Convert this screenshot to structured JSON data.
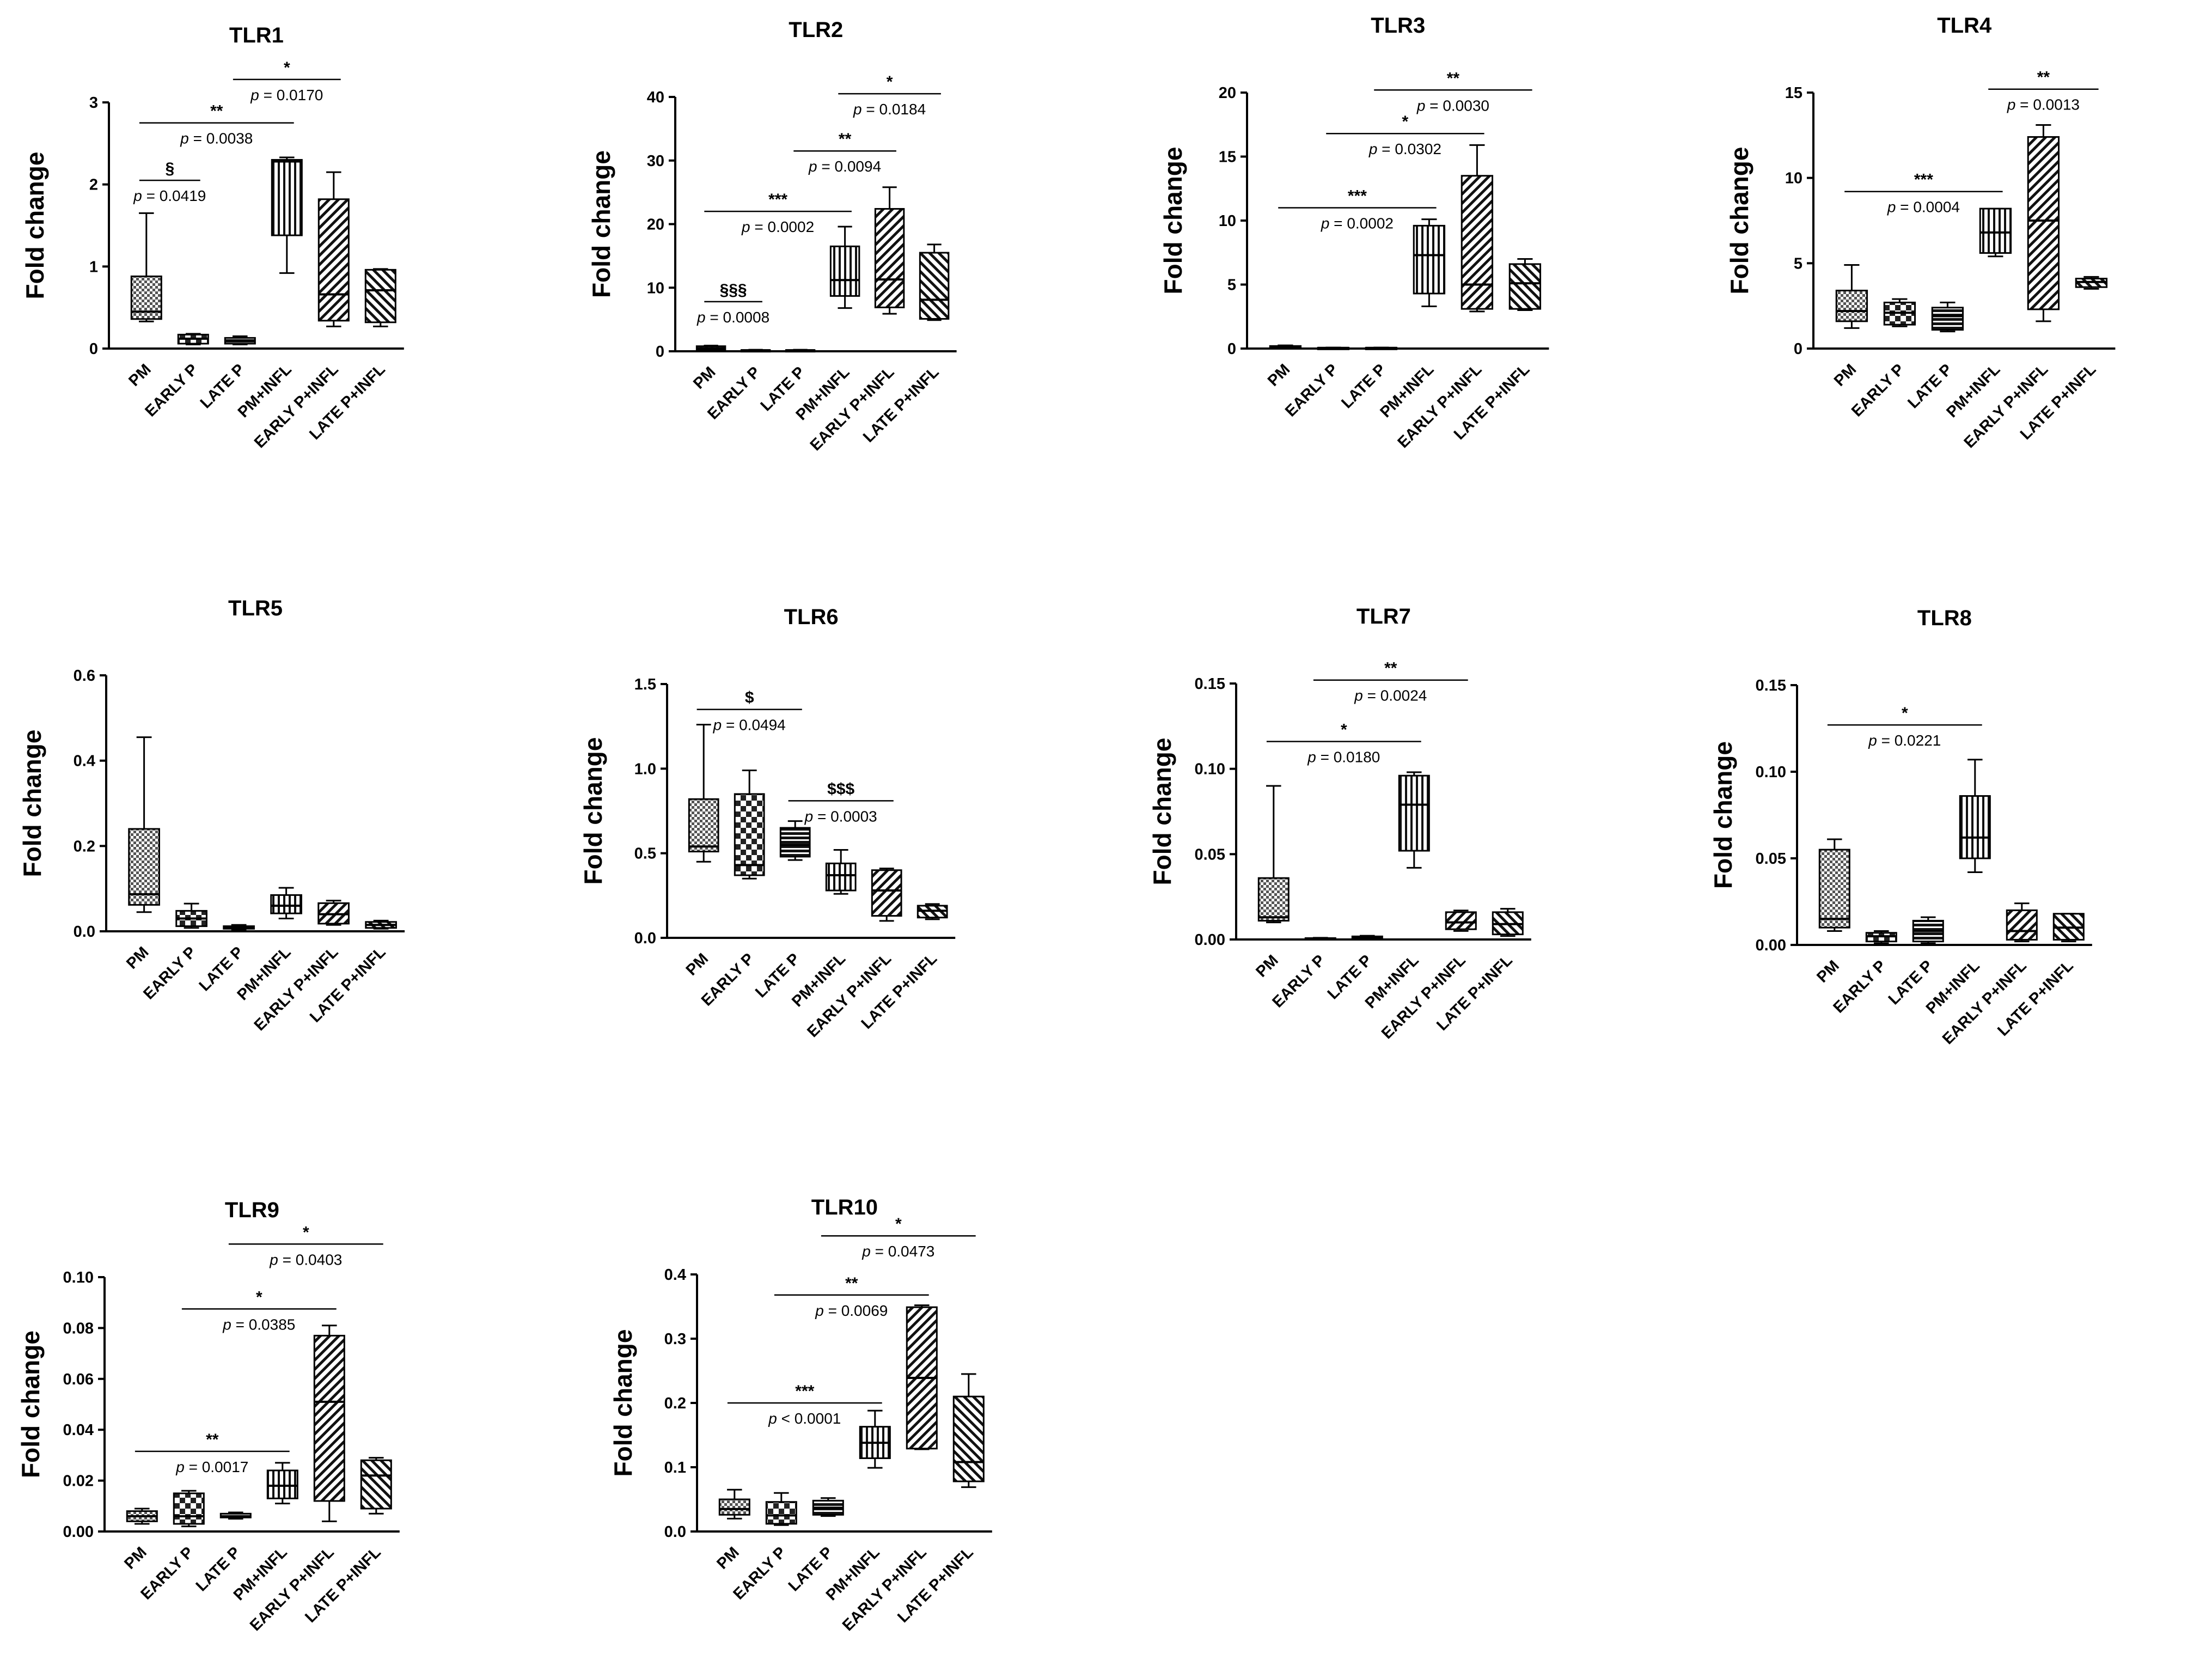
{
  "figure": {
    "ylabel": "Fold change",
    "pval_prefix": "p",
    "colors": {
      "ink": "#000000",
      "fill_light": "#c8c8c8",
      "fill_dark": "#2a2a2a",
      "background": "#ffffff"
    }
  },
  "chart_data": [
    {
      "type": "box",
      "title": "TLR1",
      "ylabel": "Fold change",
      "categories": [
        "PM",
        "EARLY P",
        "LATE P",
        "PM+INFL",
        "EARLY P+INFL",
        "LATE P+INFL"
      ],
      "yticks": [
        "0",
        "1",
        "2",
        "3"
      ],
      "ylim": [
        0,
        3
      ],
      "boxes": [
        {
          "min": 0.33,
          "q1": 0.36,
          "median": 0.45,
          "q3": 0.88,
          "max": 1.65
        },
        {
          "min": 0.05,
          "q1": 0.06,
          "median": 0.12,
          "q3": 0.17,
          "max": 0.18
        },
        {
          "min": 0.05,
          "q1": 0.06,
          "median": 0.1,
          "q3": 0.13,
          "max": 0.15
        },
        {
          "min": 0.92,
          "q1": 1.38,
          "median": 2.28,
          "q3": 2.3,
          "max": 2.33
        },
        {
          "min": 0.27,
          "q1": 0.34,
          "median": 0.66,
          "q3": 1.82,
          "max": 2.15
        },
        {
          "min": 0.27,
          "q1": 0.32,
          "median": 0.71,
          "q3": 0.96,
          "max": 0.97
        }
      ],
      "comparisons": [
        {
          "from": 0,
          "to": 1,
          "symbol": "§",
          "p": "0.0419",
          "y": 2.05
        },
        {
          "from": 0,
          "to": 3,
          "symbol": "**",
          "p": "0.0038",
          "y": 2.75
        },
        {
          "from": 2,
          "to": 4,
          "symbol": "*",
          "p": "0.0170",
          "y": 3.28
        }
      ]
    },
    {
      "type": "box",
      "title": "TLR2",
      "ylabel": "Fold change",
      "categories": [
        "PM",
        "EARLY P",
        "LATE P",
        "PM+INFL",
        "EARLY P+INFL",
        "LATE P+INFL"
      ],
      "yticks": [
        "0",
        "10",
        "20",
        "30",
        "40"
      ],
      "ylim": [
        0,
        40
      ],
      "boxes": [
        {
          "min": 0.2,
          "q1": 0.3,
          "median": 0.5,
          "q3": 0.8,
          "max": 0.9
        },
        {
          "min": 0.05,
          "q1": 0.1,
          "median": 0.15,
          "q3": 0.2,
          "max": 0.25
        },
        {
          "min": 0.05,
          "q1": 0.1,
          "median": 0.15,
          "q3": 0.2,
          "max": 0.25
        },
        {
          "min": 6.8,
          "q1": 8.7,
          "median": 11.2,
          "q3": 16.5,
          "max": 19.6
        },
        {
          "min": 5.9,
          "q1": 6.9,
          "median": 11.3,
          "q3": 22.4,
          "max": 25.8
        },
        {
          "min": 4.9,
          "q1": 5.1,
          "median": 8.1,
          "q3": 15.5,
          "max": 16.8
        }
      ],
      "comparisons": [
        {
          "from": 0,
          "to": 1,
          "symbol": "§§§",
          "p": "0.0008",
          "y": 7.8
        },
        {
          "from": 0,
          "to": 3,
          "symbol": "***",
          "p": "0.0002",
          "y": 22
        },
        {
          "from": 2,
          "to": 4,
          "symbol": "**",
          "p": "0.0094",
          "y": 31.5
        },
        {
          "from": 3,
          "to": 5,
          "symbol": "*",
          "p": "0.0184",
          "y": 40.5
        }
      ]
    },
    {
      "type": "box",
      "title": "TLR3",
      "ylabel": "Fold change",
      "categories": [
        "PM",
        "EARLY P",
        "LATE P",
        "PM+INFL",
        "EARLY P+INFL",
        "LATE P+INFL"
      ],
      "yticks": [
        "0",
        "5",
        "10",
        "15",
        "20"
      ],
      "ylim": [
        0,
        20
      ],
      "boxes": [
        {
          "min": 0.05,
          "q1": 0.1,
          "median": 0.15,
          "q3": 0.2,
          "max": 0.25
        },
        {
          "min": 0.02,
          "q1": 0.03,
          "median": 0.05,
          "q3": 0.07,
          "max": 0.08
        },
        {
          "min": 0.02,
          "q1": 0.03,
          "median": 0.05,
          "q3": 0.07,
          "max": 0.08
        },
        {
          "min": 3.3,
          "q1": 4.3,
          "median": 7.3,
          "q3": 9.6,
          "max": 10.1
        },
        {
          "min": 2.9,
          "q1": 3.1,
          "median": 5.0,
          "q3": 13.5,
          "max": 15.9
        },
        {
          "min": 3.0,
          "q1": 3.1,
          "median": 5.1,
          "q3": 6.6,
          "max": 7.0
        }
      ],
      "comparisons": [
        {
          "from": 0,
          "to": 3,
          "symbol": "***",
          "p": "0.0002",
          "y": 11
        },
        {
          "from": 1,
          "to": 4,
          "symbol": "*",
          "p": "0.0302",
          "y": 16.8
        },
        {
          "from": 2,
          "to": 5,
          "symbol": "**",
          "p": "0.0030",
          "y": 20.2
        }
      ]
    },
    {
      "type": "box",
      "title": "TLR4",
      "ylabel": "Fold change",
      "categories": [
        "PM",
        "EARLY P",
        "LATE P",
        "PM+INFL",
        "EARLY P+INFL",
        "LATE P+INFL"
      ],
      "yticks": [
        "0",
        "5",
        "10",
        "15"
      ],
      "ylim": [
        0,
        15
      ],
      "boxes": [
        {
          "min": 1.2,
          "q1": 1.6,
          "median": 2.2,
          "q3": 3.4,
          "max": 4.9
        },
        {
          "min": 1.3,
          "q1": 1.4,
          "median": 2.1,
          "q3": 2.7,
          "max": 2.9
        },
        {
          "min": 1.0,
          "q1": 1.1,
          "median": 1.9,
          "q3": 2.4,
          "max": 2.7
        },
        {
          "min": 5.4,
          "q1": 5.6,
          "median": 6.8,
          "q3": 8.2,
          "max": 8.2
        },
        {
          "min": 1.6,
          "q1": 2.3,
          "median": 7.5,
          "q3": 12.4,
          "max": 13.1
        },
        {
          "min": 3.5,
          "q1": 3.6,
          "median": 3.9,
          "q3": 4.1,
          "max": 4.2
        }
      ],
      "comparisons": [
        {
          "from": 0,
          "to": 3,
          "symbol": "***",
          "p": "0.0004",
          "y": 9.2
        },
        {
          "from": 3,
          "to": 5,
          "symbol": "**",
          "p": "0.0013",
          "y": 15.2
        }
      ]
    },
    {
      "type": "box",
      "title": "TLR5",
      "ylabel": "Fold change",
      "categories": [
        "PM",
        "EARLY P",
        "LATE P",
        "PM+INFL",
        "EARLY P+INFL",
        "LATE P+INFL"
      ],
      "yticks": [
        "0.0",
        "0.2",
        "0.4",
        "0.6"
      ],
      "ylim": [
        0,
        0.6
      ],
      "boxes": [
        {
          "min": 0.045,
          "q1": 0.062,
          "median": 0.087,
          "q3": 0.24,
          "max": 0.455
        },
        {
          "min": 0.008,
          "q1": 0.012,
          "median": 0.03,
          "q3": 0.048,
          "max": 0.065
        },
        {
          "min": 0.004,
          "q1": 0.006,
          "median": 0.009,
          "q3": 0.012,
          "max": 0.015
        },
        {
          "min": 0.03,
          "q1": 0.042,
          "median": 0.06,
          "q3": 0.085,
          "max": 0.102
        },
        {
          "min": 0.015,
          "q1": 0.018,
          "median": 0.04,
          "q3": 0.066,
          "max": 0.072
        },
        {
          "min": 0.006,
          "q1": 0.008,
          "median": 0.015,
          "q3": 0.022,
          "max": 0.025
        }
      ],
      "comparisons": []
    },
    {
      "type": "box",
      "title": "TLR6",
      "ylabel": "Fold change",
      "categories": [
        "PM",
        "EARLY P",
        "LATE P",
        "PM+INFL",
        "EARLY P+INFL",
        "LATE P+INFL"
      ],
      "yticks": [
        "0.0",
        "0.5",
        "1.0",
        "1.5"
      ],
      "ylim": [
        0,
        1.5
      ],
      "boxes": [
        {
          "min": 0.45,
          "q1": 0.51,
          "median": 0.54,
          "q3": 0.82,
          "max": 1.26
        },
        {
          "min": 0.35,
          "q1": 0.37,
          "median": 0.43,
          "q3": 0.85,
          "max": 0.99
        },
        {
          "min": 0.46,
          "q1": 0.48,
          "median": 0.55,
          "q3": 0.65,
          "max": 0.69
        },
        {
          "min": 0.26,
          "q1": 0.28,
          "median": 0.37,
          "q3": 0.44,
          "max": 0.52
        },
        {
          "min": 0.1,
          "q1": 0.13,
          "median": 0.28,
          "q3": 0.4,
          "max": 0.41
        },
        {
          "min": 0.11,
          "q1": 0.12,
          "median": 0.16,
          "q3": 0.19,
          "max": 0.2
        }
      ],
      "comparisons": [
        {
          "from": 0,
          "to": 2,
          "symbol": "$",
          "p": "0.0494",
          "y": 1.35
        },
        {
          "from": 2,
          "to": 4,
          "symbol": "$$$",
          "p": "0.0003",
          "y": 0.81
        }
      ]
    },
    {
      "type": "box",
      "title": "TLR7",
      "ylabel": "Fold change",
      "categories": [
        "PM",
        "EARLY P",
        "LATE P",
        "PM+INFL",
        "EARLY P+INFL",
        "LATE P+INFL"
      ],
      "yticks": [
        "0.00",
        "0.05",
        "0.10",
        "0.15"
      ],
      "ylim": [
        0,
        0.15
      ],
      "boxes": [
        {
          "min": 0.01,
          "q1": 0.011,
          "median": 0.013,
          "q3": 0.036,
          "max": 0.09
        },
        {
          "min": 0.0003,
          "q1": 0.0004,
          "median": 0.0006,
          "q3": 0.0008,
          "max": 0.001
        },
        {
          "min": 0.0005,
          "q1": 0.0008,
          "median": 0.0012,
          "q3": 0.0018,
          "max": 0.0022
        },
        {
          "min": 0.042,
          "q1": 0.052,
          "median": 0.079,
          "q3": 0.096,
          "max": 0.098
        },
        {
          "min": 0.005,
          "q1": 0.006,
          "median": 0.01,
          "q3": 0.016,
          "max": 0.017
        },
        {
          "min": 0.002,
          "q1": 0.003,
          "median": 0.009,
          "q3": 0.016,
          "max": 0.018
        }
      ],
      "comparisons": [
        {
          "from": 0,
          "to": 3,
          "symbol": "*",
          "p": "0.0180",
          "y": 0.116
        },
        {
          "from": 1,
          "to": 4,
          "symbol": "**",
          "p": "0.0024",
          "y": 0.152
        }
      ]
    },
    {
      "type": "box",
      "title": "TLR8",
      "ylabel": "Fold change",
      "categories": [
        "PM",
        "EARLY P",
        "LATE P",
        "PM+INFL",
        "EARLY P+INFL",
        "LATE P+INFL"
      ],
      "yticks": [
        "0.00",
        "0.05",
        "0.10",
        "0.15"
      ],
      "ylim": [
        0,
        0.15
      ],
      "boxes": [
        {
          "min": 0.008,
          "q1": 0.01,
          "median": 0.015,
          "q3": 0.055,
          "max": 0.061
        },
        {
          "min": 0.001,
          "q1": 0.002,
          "median": 0.005,
          "q3": 0.007,
          "max": 0.008
        },
        {
          "min": 0.001,
          "q1": 0.002,
          "median": 0.008,
          "q3": 0.014,
          "max": 0.016
        },
        {
          "min": 0.042,
          "q1": 0.05,
          "median": 0.062,
          "q3": 0.086,
          "max": 0.107
        },
        {
          "min": 0.002,
          "q1": 0.003,
          "median": 0.008,
          "q3": 0.02,
          "max": 0.024
        },
        {
          "min": 0.002,
          "q1": 0.003,
          "median": 0.01,
          "q3": 0.018,
          "max": 0.018
        }
      ],
      "comparisons": [
        {
          "from": 0,
          "to": 3,
          "symbol": "*",
          "p": "0.0221",
          "y": 0.127
        }
      ]
    },
    {
      "type": "box",
      "title": "TLR9",
      "ylabel": "Fold change",
      "categories": [
        "PM",
        "EARLY P",
        "LATE P",
        "PM+INFL",
        "EARLY P+INFL",
        "LATE P+INFL"
      ],
      "yticks": [
        "0.00",
        "0.02",
        "0.04",
        "0.06",
        "0.08",
        "0.10"
      ],
      "ylim": [
        0,
        0.1
      ],
      "boxes": [
        {
          "min": 0.003,
          "q1": 0.004,
          "median": 0.006,
          "q3": 0.008,
          "max": 0.009
        },
        {
          "min": 0.002,
          "q1": 0.003,
          "median": 0.006,
          "q3": 0.015,
          "max": 0.016
        },
        {
          "min": 0.005,
          "q1": 0.0055,
          "median": 0.006,
          "q3": 0.007,
          "max": 0.0075
        },
        {
          "min": 0.011,
          "q1": 0.013,
          "median": 0.018,
          "q3": 0.024,
          "max": 0.027
        },
        {
          "min": 0.004,
          "q1": 0.012,
          "median": 0.051,
          "q3": 0.077,
          "max": 0.081
        },
        {
          "min": 0.007,
          "q1": 0.009,
          "median": 0.022,
          "q3": 0.028,
          "max": 0.029
        }
      ],
      "comparisons": [
        {
          "from": 0,
          "to": 3,
          "symbol": "**",
          "p": "0.0017",
          "y": 0.0315
        },
        {
          "from": 1,
          "to": 4,
          "symbol": "*",
          "p": "0.0385",
          "y": 0.0875
        },
        {
          "from": 2,
          "to": 5,
          "symbol": "*",
          "p": "0.0403",
          "y": 0.113
        }
      ]
    },
    {
      "type": "box",
      "title": "TLR10",
      "ylabel": "Fold change",
      "categories": [
        "PM",
        "EARLY P",
        "LATE P",
        "PM+INFL",
        "EARLY P+INFL",
        "LATE P+INFL"
      ],
      "yticks": [
        "0.0",
        "0.1",
        "0.2",
        "0.3",
        "0.4"
      ],
      "ylim": [
        0,
        0.4
      ],
      "boxes": [
        {
          "min": 0.02,
          "q1": 0.026,
          "median": 0.035,
          "q3": 0.05,
          "max": 0.065
        },
        {
          "min": 0.01,
          "q1": 0.012,
          "median": 0.025,
          "q3": 0.046,
          "max": 0.06
        },
        {
          "min": 0.024,
          "q1": 0.026,
          "median": 0.037,
          "q3": 0.048,
          "max": 0.052
        },
        {
          "min": 0.099,
          "q1": 0.114,
          "median": 0.138,
          "q3": 0.163,
          "max": 0.188
        },
        {
          "min": 0.128,
          "q1": 0.129,
          "median": 0.239,
          "q3": 0.349,
          "max": 0.352
        },
        {
          "min": 0.069,
          "q1": 0.078,
          "median": 0.108,
          "q3": 0.21,
          "max": 0.245
        }
      ],
      "comparisons": [
        {
          "from": 0,
          "to": 3,
          "symbol": "***",
          "p": "< 0.0001",
          "y": 0.2
        },
        {
          "from": 1,
          "to": 4,
          "symbol": "**",
          "p": "0.0069",
          "y": 0.368
        },
        {
          "from": 2,
          "to": 5,
          "symbol": "*",
          "p": "0.0473",
          "y": 0.46
        }
      ]
    }
  ]
}
